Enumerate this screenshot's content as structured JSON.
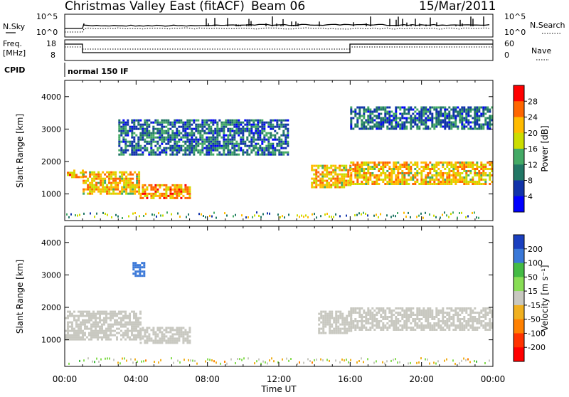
{
  "header": {
    "site": "Christmas Valley East (fitACF)",
    "beam": "Beam 06",
    "date": "15/Mar/2011"
  },
  "noise_panel": {
    "left_label": "N.Sky",
    "left_ticks": [
      "10^5",
      "10^0"
    ],
    "right_ticks": [
      "10^5",
      "10^0"
    ],
    "right_label": "N.Search"
  },
  "freq_panel": {
    "left_label_1": "Freq.",
    "left_label_2": "[MHz]",
    "left_ticks": [
      "18",
      "8"
    ],
    "right_ticks": [
      "60",
      "0"
    ],
    "right_label": "Nave"
  },
  "cpid": {
    "label": "CPID",
    "value": "normal 150 IF"
  },
  "colorbars": {
    "power": {
      "label": "Power [dB]",
      "ticks": [
        "28",
        "24",
        "20",
        "16",
        "12",
        "8",
        "4"
      ],
      "colors": [
        "#ff0000",
        "#ff6600",
        "#ffbb00",
        "#ccdd00",
        "#44aa66",
        "#227766",
        "#1133aa",
        "#0000ff"
      ]
    },
    "velocity": {
      "label": "Velocity [m s⁻¹]",
      "ticks": [
        "200",
        "100",
        "50",
        "15",
        "-15",
        "-50",
        "-100",
        "-200"
      ],
      "colors": [
        "#1a3fbf",
        "#3a78d8",
        "#44bb44",
        "#88dd55",
        "#c8c8c0",
        "#f0b020",
        "#ff8000",
        "#ff3300",
        "#ff0000"
      ]
    }
  },
  "axes": {
    "x_label": "Time UT",
    "x_ticks": [
      "00:00",
      "04:00",
      "08:00",
      "12:00",
      "16:00",
      "20:00",
      "00:00"
    ],
    "y_label": "Slant Range [km]",
    "y_ticks": [
      "1000",
      "2000",
      "3000",
      "4000"
    ]
  },
  "chart_data": [
    {
      "type": "heatmap",
      "title": "Power",
      "xlabel": "",
      "ylabel": "Slant Range [km]",
      "xlim": [
        0,
        24
      ],
      "ylim": [
        180,
        4500
      ],
      "colorbar": {
        "label": "Power [dB]",
        "range": [
          0,
          32
        ]
      },
      "regions": [
        {
          "t_start": 0.0,
          "t_end": 1.0,
          "range_low": 1500,
          "range_high": 1750,
          "value": 24
        },
        {
          "t_start": 1.0,
          "t_end": 4.2,
          "range_low": 1000,
          "range_high": 1700,
          "value": 22
        },
        {
          "t_start": 4.2,
          "t_end": 7.0,
          "range_low": 900,
          "range_high": 1300,
          "value": 24
        },
        {
          "t_start": 3.0,
          "t_end": 12.5,
          "range_low": 2200,
          "range_high": 3300,
          "value": 8
        },
        {
          "t_start": 13.8,
          "t_end": 16.0,
          "range_low": 1200,
          "range_high": 1900,
          "value": 22
        },
        {
          "t_start": 16.0,
          "t_end": 24.0,
          "range_low": 1300,
          "range_high": 2000,
          "value": 22
        },
        {
          "t_start": 16.0,
          "t_end": 24.0,
          "range_low": 3000,
          "range_high": 3700,
          "value": 8
        }
      ]
    },
    {
      "type": "heatmap",
      "title": "Velocity",
      "xlabel": "Time UT",
      "ylabel": "Slant Range [km]",
      "xlim": [
        0,
        24
      ],
      "ylim": [
        180,
        4500
      ],
      "colorbar": {
        "label": "Velocity [m s⁻¹]",
        "range": [
          -250,
          250
        ]
      },
      "regions": [
        {
          "t_start": 0.0,
          "t_end": 4.2,
          "range_low": 1000,
          "range_high": 1900,
          "value": 0
        },
        {
          "t_start": 4.2,
          "t_end": 7.0,
          "range_low": 900,
          "range_high": 1400,
          "value": 10
        },
        {
          "t_start": 3.8,
          "t_end": 4.4,
          "range_low": 3000,
          "range_high": 3400,
          "value": 200
        },
        {
          "t_start": 14.2,
          "t_end": 16.0,
          "range_low": 1200,
          "range_high": 1900,
          "value": 0
        },
        {
          "t_start": 16.0,
          "t_end": 24.0,
          "range_low": 1300,
          "range_high": 2000,
          "value": 0
        }
      ]
    }
  ]
}
